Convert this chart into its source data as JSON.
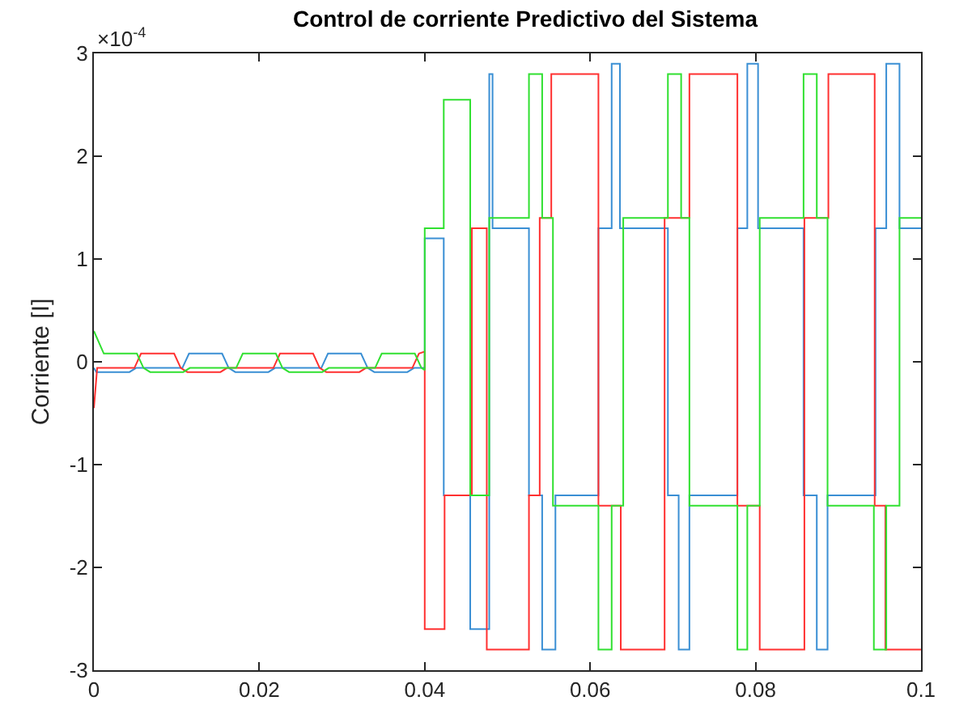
{
  "chart_data": {
    "type": "line",
    "title": "Control de corriente Predictivo del Sistema",
    "ylabel": "Corriente [I]",
    "annotations": [
      "×10$^{-4}$"
    ],
    "xlim": [
      0,
      0.1
    ],
    "xticks": [
      0,
      0.02,
      0.04,
      0.06,
      0.08,
      0.1
    ],
    "ylim": [
      -3,
      3
    ],
    "yticks": [
      -3,
      -2,
      -1,
      0,
      1,
      2,
      3
    ],
    "grid": false,
    "marker": "none",
    "line_style": "solid",
    "series": [
      {
        "color": "#3a8fd4",
        "x": [
          0,
          0.0003,
          0.0043,
          0.0051,
          0.0107,
          0.0115,
          0.0155,
          0.0163,
          0.0171,
          0.0211,
          0.0219,
          0.0275,
          0.0283,
          0.0323,
          0.0331,
          0.0339,
          0.0379,
          0.0387,
          0.04,
          0.04,
          0.0423,
          0.0423,
          0.0455,
          0.0455,
          0.0478,
          0.0478,
          0.0482,
          0.0482,
          0.0526,
          0.0526,
          0.0542,
          0.0542,
          0.0558,
          0.0558,
          0.061,
          0.061,
          0.0626,
          0.0626,
          0.0636,
          0.0636,
          0.0694,
          0.0694,
          0.0707,
          0.0707,
          0.072,
          0.072,
          0.0778,
          0.0778,
          0.079,
          0.079,
          0.0803,
          0.0803,
          0.0858,
          0.0858,
          0.0874,
          0.0874,
          0.0887,
          0.0887,
          0.0945,
          0.0945,
          0.0958,
          0.0958,
          0.0974,
          0.0974,
          0.1
        ],
        "values": [
          -0.06,
          -0.1,
          -0.1,
          -0.06,
          -0.06,
          0.08,
          0.08,
          -0.06,
          -0.1,
          -0.1,
          -0.06,
          -0.06,
          0.08,
          0.08,
          -0.06,
          -0.1,
          -0.1,
          -0.06,
          -0.06,
          1.2,
          1.2,
          -1.3,
          -1.3,
          -2.6,
          -2.6,
          2.8,
          2.8,
          1.3,
          1.3,
          -1.3,
          -1.3,
          -2.8,
          -2.8,
          -1.3,
          -1.3,
          1.3,
          1.3,
          2.9,
          2.9,
          1.3,
          1.3,
          -1.3,
          -1.3,
          -2.8,
          -2.8,
          -1.3,
          -1.3,
          1.3,
          1.3,
          2.9,
          2.9,
          1.3,
          1.3,
          -1.3,
          -1.3,
          -2.8,
          -2.8,
          -1.3,
          -1.3,
          1.3,
          1.3,
          2.9,
          2.9,
          1.3,
          1.3
        ]
      },
      {
        "color": "#ff3030",
        "x": [
          0,
          0.0004,
          0.0049,
          0.0057,
          0.0097,
          0.0105,
          0.0113,
          0.0153,
          0.0161,
          0.0217,
          0.0225,
          0.0265,
          0.0273,
          0.0281,
          0.0321,
          0.0329,
          0.0385,
          0.0393,
          0.04,
          0.04,
          0.0424,
          0.0424,
          0.0457,
          0.0457,
          0.0475,
          0.0475,
          0.0526,
          0.0526,
          0.0539,
          0.0539,
          0.0553,
          0.0553,
          0.061,
          0.061,
          0.0637,
          0.0637,
          0.069,
          0.069,
          0.072,
          0.072,
          0.0778,
          0.0778,
          0.0805,
          0.0805,
          0.0859,
          0.0859,
          0.0888,
          0.0888,
          0.0944,
          0.0944,
          0.0957,
          0.0957,
          0.1
        ],
        "values": [
          -0.45,
          -0.06,
          -0.06,
          0.08,
          0.08,
          -0.06,
          -0.1,
          -0.1,
          -0.06,
          -0.06,
          0.08,
          0.08,
          -0.06,
          -0.1,
          -0.1,
          -0.06,
          -0.06,
          0.08,
          0.1,
          -2.6,
          -2.6,
          -1.3,
          -1.3,
          1.3,
          1.3,
          -2.8,
          -2.8,
          -1.3,
          -1.3,
          1.4,
          1.4,
          2.8,
          2.8,
          -1.4,
          -1.4,
          -2.8,
          -2.8,
          1.4,
          1.4,
          2.8,
          2.8,
          -1.4,
          -1.4,
          -2.8,
          -2.8,
          1.4,
          1.4,
          2.8,
          2.8,
          -1.4,
          -1.4,
          -2.8,
          -2.8
        ]
      },
      {
        "color": "#30e030",
        "x": [
          0,
          0.0012,
          0.0052,
          0.006,
          0.0068,
          0.0108,
          0.0116,
          0.0172,
          0.018,
          0.022,
          0.0228,
          0.0236,
          0.0276,
          0.0284,
          0.034,
          0.0348,
          0.0388,
          0.0396,
          0.04,
          0.04,
          0.0423,
          0.0423,
          0.0455,
          0.0455,
          0.0478,
          0.0478,
          0.0526,
          0.0526,
          0.0542,
          0.0542,
          0.0555,
          0.0555,
          0.061,
          0.061,
          0.0626,
          0.0626,
          0.064,
          0.064,
          0.0694,
          0.0694,
          0.071,
          0.071,
          0.072,
          0.072,
          0.0778,
          0.0778,
          0.079,
          0.079,
          0.0805,
          0.0805,
          0.0858,
          0.0858,
          0.0874,
          0.0874,
          0.0887,
          0.0887,
          0.0943,
          0.0943,
          0.0958,
          0.0958,
          0.0974,
          0.0974,
          0.1
        ],
        "values": [
          0.3,
          0.08,
          0.08,
          -0.06,
          -0.1,
          -0.1,
          -0.06,
          -0.06,
          0.08,
          0.08,
          -0.06,
          -0.1,
          -0.1,
          -0.06,
          -0.06,
          0.08,
          0.08,
          -0.06,
          -0.08,
          1.3,
          1.3,
          2.55,
          2.55,
          -1.3,
          -1.3,
          1.4,
          1.4,
          2.8,
          2.8,
          1.4,
          1.4,
          -1.4,
          -1.4,
          -2.8,
          -2.8,
          -1.4,
          -1.4,
          1.4,
          1.4,
          2.8,
          2.8,
          1.4,
          1.4,
          -1.4,
          -1.4,
          -2.8,
          -2.8,
          -1.4,
          -1.4,
          1.4,
          1.4,
          2.8,
          2.8,
          1.4,
          1.4,
          -1.4,
          -1.4,
          -2.8,
          -2.8,
          -1.4,
          -1.4,
          1.4,
          1.4
        ]
      }
    ]
  }
}
